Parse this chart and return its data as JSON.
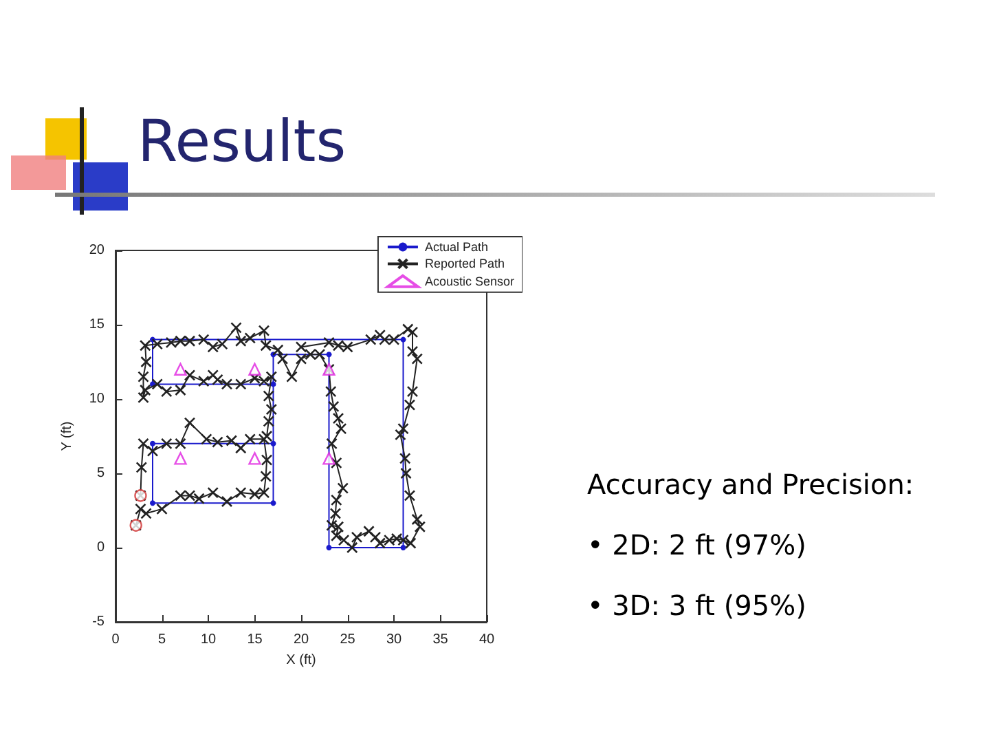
{
  "chart_data": {
    "type": "line",
    "title": "Results",
    "xlabel": "X (ft)",
    "ylabel": "Y (ft)",
    "xlim": [
      0,
      40
    ],
    "xticks": [
      0,
      5,
      10,
      15,
      20,
      25,
      30,
      35,
      40
    ],
    "ylim": [
      -5,
      20
    ],
    "yticks": [
      -5,
      0,
      5,
      10,
      15,
      20
    ],
    "grid": false,
    "legend": "top right",
    "annotations": [
      "Accuracy and Precision:",
      "• 2D: 2 ft (97%)",
      "• 3D: 3 ft (95%)"
    ],
    "series": [
      {
        "name": "Actual Path",
        "color": "#1a1acc",
        "marker": "circle",
        "x": [
          17,
          4,
          4,
          17,
          17,
          23,
          23,
          31,
          31,
          4,
          4,
          17
        ],
        "values": [
          7,
          7,
          3,
          3,
          13,
          13,
          0,
          0,
          14,
          14,
          11,
          11
        ]
      },
      {
        "name": "Reported Path",
        "color": "#222222",
        "marker": "cross",
        "x": [
          2.2,
          2.7,
          3.3,
          5,
          7,
          8,
          9,
          10.5,
          12,
          13.5,
          15,
          16,
          16.2,
          16.3,
          16,
          14.5,
          13.5,
          12.5,
          11,
          9.8,
          8,
          7,
          5.5,
          4,
          3,
          2.8,
          2.7,
          null,
          16.3,
          16.5,
          16.8,
          16.5,
          16.8,
          16,
          15,
          13.5,
          12,
          11,
          10.5,
          9.5,
          8,
          7,
          5.5,
          4.5,
          3.2,
          3,
          3,
          3.3,
          3.2,
          4.5,
          6,
          7,
          8,
          9.5,
          10.5,
          11.5,
          13,
          13.5,
          14.5,
          16,
          16.2,
          17.5,
          18,
          19,
          20,
          21,
          22,
          23,
          23.2,
          23.5,
          24,
          24.3,
          23.3,
          23.8,
          24.5,
          23.8,
          23.7,
          23.3,
          24,
          23.8,
          24.6,
          25.5,
          26,
          27.3,
          28,
          28.5,
          29.5,
          30.3,
          31,
          31.8,
          32.8,
          32.5,
          31.7,
          31.3,
          31.2,
          30.7,
          31,
          31.7,
          32,
          32.5,
          32,
          32,
          31.5,
          30,
          29,
          28.5,
          27.5,
          25,
          24,
          23,
          20
        ],
        "values": [
          1.5,
          2.6,
          2.3,
          2.6,
          3.5,
          3.5,
          3.3,
          3.7,
          3.1,
          3.7,
          3.6,
          3.7,
          4.8,
          5.9,
          7.3,
          7.3,
          6.7,
          7.2,
          7.1,
          7.3,
          8.4,
          7,
          7,
          6.5,
          7,
          5.4,
          3.5,
          null,
          7.5,
          8.5,
          9.3,
          10.2,
          11.5,
          11.2,
          11.4,
          11,
          11,
          11.3,
          11.6,
          11.2,
          11.6,
          10.6,
          10.5,
          11,
          10.6,
          10.1,
          11.5,
          12.5,
          13.6,
          13.7,
          13.8,
          13.9,
          13.9,
          14,
          13.5,
          13.7,
          14.8,
          13.9,
          14.1,
          14.6,
          13.6,
          13.3,
          12.7,
          11.5,
          12.7,
          13,
          13,
          12,
          10.5,
          9.5,
          8.7,
          8,
          7,
          5.7,
          4,
          3.2,
          2.3,
          1.5,
          1.4,
          0.8,
          0.5,
          0,
          0.7,
          1.1,
          0.7,
          0.3,
          0.5,
          0.6,
          0.5,
          0.3,
          1.4,
          1.9,
          3.5,
          5,
          6,
          7.6,
          8,
          9.6,
          10.5,
          12.7,
          13.2,
          14.5,
          14.7,
          14,
          14,
          14.3,
          14,
          13.5,
          13.6,
          13.8,
          13.5
        ]
      },
      {
        "name": "Acoustic Sensor",
        "type": "scatter",
        "color": "#e020e0",
        "marker": "triangle",
        "x": [
          7,
          15,
          23,
          7,
          15,
          23
        ],
        "values": [
          12,
          12,
          12,
          6,
          6,
          6
        ]
      },
      {
        "type": "scatter",
        "color": "#d03030",
        "marker": "circle",
        "x": [
          2.2,
          2.7
        ],
        "values": [
          1.5,
          3.5
        ]
      }
    ]
  }
}
